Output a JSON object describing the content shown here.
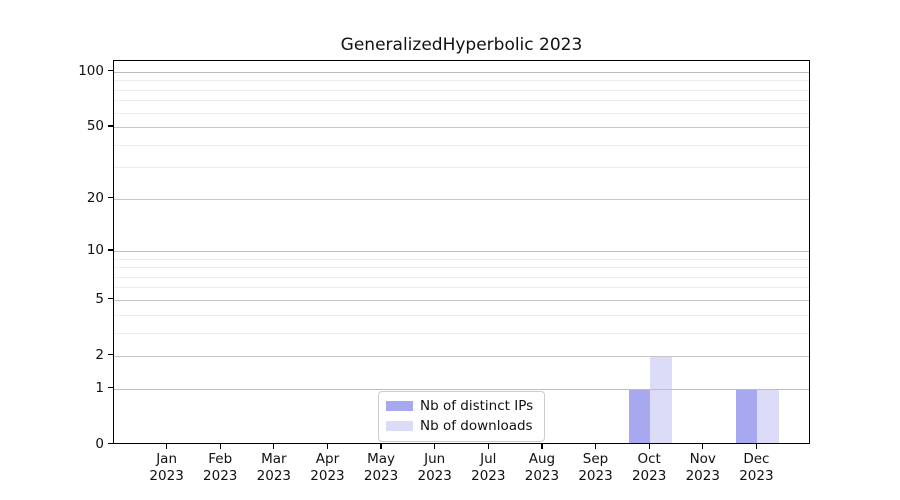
{
  "title": "GeneralizedHyperbolic 2023",
  "chart_data": {
    "type": "bar",
    "title": "GeneralizedHyperbolic 2023",
    "xlabel": "",
    "ylabel": "",
    "x_axis": {
      "categories": [
        "Jan",
        "Feb",
        "Mar",
        "Apr",
        "May",
        "Jun",
        "Jul",
        "Aug",
        "Sep",
        "Oct",
        "Nov",
        "Dec"
      ],
      "year": "2023"
    },
    "y_axis": {
      "scale": "log1p",
      "ticks": [
        0,
        1,
        2,
        5,
        10,
        20,
        50,
        100
      ],
      "minor_ticks": [
        3,
        4,
        6,
        7,
        8,
        9,
        30,
        40,
        60,
        70,
        80,
        90
      ],
      "range": [
        0,
        114.5
      ],
      "grid": true
    },
    "series": [
      {
        "name": "Nb of distinct IPs",
        "color": "#a8a8f0",
        "values": [
          0,
          0,
          0,
          0,
          0,
          0,
          0,
          0,
          0,
          1,
          0,
          1
        ]
      },
      {
        "name": "Nb of downloads",
        "color": "#dcdcf8",
        "values": [
          0,
          0,
          0,
          0,
          0,
          0,
          0,
          0,
          0,
          2,
          0,
          1
        ]
      }
    ],
    "legend": {
      "position": "lower center",
      "entries": [
        "Nb of distinct IPs",
        "Nb of downloads"
      ]
    }
  }
}
